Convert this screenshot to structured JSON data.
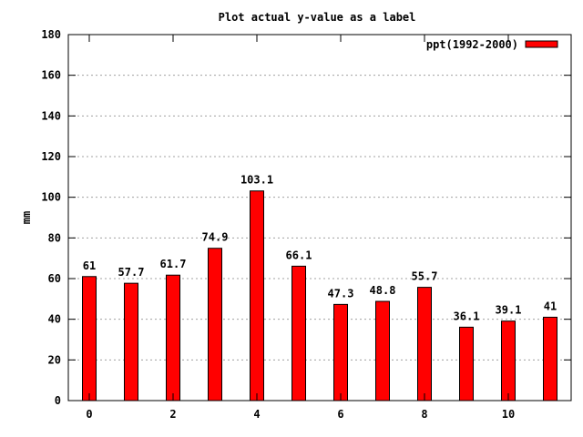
{
  "chart_data": {
    "type": "bar",
    "title": "Plot actual y-value as a label",
    "ylabel": "mm",
    "xlabel": "",
    "x": [
      0,
      1,
      2,
      3,
      4,
      5,
      6,
      7,
      8,
      9,
      10,
      11
    ],
    "values": [
      61,
      57.7,
      61.7,
      74.9,
      103.1,
      66.1,
      47.3,
      48.8,
      55.7,
      36.1,
      39.1,
      41
    ],
    "data_labels": [
      "61",
      "57.7",
      "61.7",
      "74.9",
      "103.1",
      "66.1",
      "47.3",
      "48.8",
      "55.7",
      "36.1",
      "39.1",
      "41"
    ],
    "xlim": [
      -0.5,
      11.5
    ],
    "ylim": [
      0,
      180
    ],
    "x_ticks": [
      "0",
      "2",
      "4",
      "6",
      "8",
      "10"
    ],
    "x_tick_values": [
      0,
      2,
      4,
      6,
      8,
      10
    ],
    "y_ticks": [
      "0",
      "20",
      "40",
      "60",
      "80",
      "100",
      "120",
      "140",
      "160",
      "180"
    ],
    "y_tick_values": [
      0,
      20,
      40,
      60,
      80,
      100,
      120,
      140,
      160,
      180
    ],
    "series": [
      {
        "name": "ppt(1992-2000)",
        "color": "#ff0000"
      }
    ],
    "grid": true,
    "legend_position": "top-right"
  }
}
